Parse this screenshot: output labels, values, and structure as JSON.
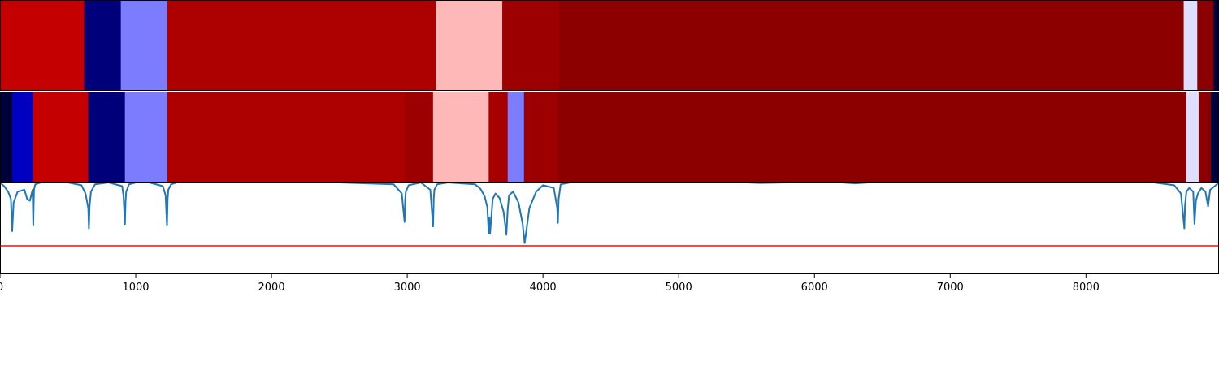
{
  "chart_data": {
    "type": "heatmap",
    "title": "",
    "xlabel": "",
    "ylabel": "",
    "xlim": [
      0,
      8980
    ],
    "x_ticks": [
      0,
      1000,
      2000,
      3000,
      4000,
      5000,
      6000,
      7000,
      8000
    ],
    "x_tick_labels": [
      "0",
      "1000",
      "2000",
      "3000",
      "4000",
      "5000",
      "6000",
      "7000",
      "8000"
    ],
    "grid": false,
    "legend": "none",
    "panels": [
      {
        "kind": "segment_strip",
        "segments": [
          {
            "start": 0,
            "end": 620,
            "color": "#c40000"
          },
          {
            "start": 620,
            "end": 890,
            "color": "#00007a"
          },
          {
            "start": 890,
            "end": 1230,
            "color": "#7c7cff"
          },
          {
            "start": 1230,
            "end": 3210,
            "color": "#ad0000"
          },
          {
            "start": 3210,
            "end": 3700,
            "color": "#ffb8b8"
          },
          {
            "start": 3700,
            "end": 4120,
            "color": "#9c0000"
          },
          {
            "start": 4120,
            "end": 8720,
            "color": "#8c0000"
          },
          {
            "start": 8720,
            "end": 8820,
            "color": "#dedeff"
          },
          {
            "start": 8820,
            "end": 8940,
            "color": "#8a0000"
          },
          {
            "start": 8940,
            "end": 8980,
            "color": "#00003a"
          }
        ]
      },
      {
        "kind": "segment_strip",
        "segments": [
          {
            "start": 0,
            "end": 90,
            "color": "#00003a"
          },
          {
            "start": 90,
            "end": 240,
            "color": "#0000c0"
          },
          {
            "start": 240,
            "end": 650,
            "color": "#c40000"
          },
          {
            "start": 650,
            "end": 920,
            "color": "#00007a"
          },
          {
            "start": 920,
            "end": 1230,
            "color": "#7c7cff"
          },
          {
            "start": 1230,
            "end": 2980,
            "color": "#ad0000"
          },
          {
            "start": 2980,
            "end": 3190,
            "color": "#9c0000"
          },
          {
            "start": 3190,
            "end": 3600,
            "color": "#ffb8b8"
          },
          {
            "start": 3600,
            "end": 3740,
            "color": "#a80000"
          },
          {
            "start": 3740,
            "end": 3860,
            "color": "#7c7cff"
          },
          {
            "start": 3860,
            "end": 4110,
            "color": "#9c0000"
          },
          {
            "start": 4110,
            "end": 8740,
            "color": "#8c0000"
          },
          {
            "start": 8740,
            "end": 8830,
            "color": "#dedeff"
          },
          {
            "start": 8830,
            "end": 8920,
            "color": "#8a0000"
          },
          {
            "start": 8920,
            "end": 8980,
            "color": "#00003a"
          }
        ]
      },
      {
        "kind": "line",
        "line_color": "#1f77b4",
        "threshold": 0.31,
        "threshold_color": "#e8130f",
        "ylim": [
          0,
          1
        ],
        "series": {
          "x": [
            0,
            30,
            60,
            80,
            90,
            100,
            130,
            180,
            200,
            220,
            240,
            245,
            250,
            260,
            300,
            400,
            500,
            600,
            630,
            650,
            655,
            660,
            670,
            700,
            800,
            900,
            910,
            920,
            925,
            930,
            950,
            1000,
            1100,
            1200,
            1220,
            1230,
            1235,
            1240,
            1260,
            1300,
            1500,
            2000,
            2500,
            2900,
            2960,
            2980,
            2985,
            2990,
            3010,
            3100,
            3170,
            3190,
            3195,
            3200,
            3220,
            3300,
            3500,
            3540,
            3570,
            3590,
            3600,
            3605,
            3610,
            3630,
            3650,
            3680,
            3710,
            3730,
            3740,
            3750,
            3780,
            3820,
            3850,
            3865,
            3880,
            3900,
            3950,
            4000,
            4080,
            4105,
            4110,
            4115,
            4130,
            4200,
            4500,
            5000,
            5500,
            5600,
            5800,
            6000,
            6200,
            6300,
            6400,
            6600,
            7000,
            7500,
            8000,
            8500,
            8650,
            8700,
            8725,
            8730,
            8740,
            8760,
            8790,
            8800,
            8810,
            8825,
            8850,
            8880,
            8900,
            8915,
            8940,
            8980
          ],
          "y": [
            1,
            0.96,
            0.9,
            0.82,
            0.47,
            0.78,
            0.9,
            0.92,
            0.82,
            0.8,
            0.92,
            0.53,
            0.92,
            0.98,
            1,
            1,
            1,
            0.97,
            0.88,
            0.72,
            0.5,
            0.74,
            0.9,
            0.98,
            1,
            0.96,
            0.85,
            0.54,
            0.8,
            0.9,
            0.98,
            1,
            1,
            0.96,
            0.86,
            0.53,
            0.82,
            0.92,
            0.98,
            1,
            1,
            1,
            1,
            0.98,
            0.88,
            0.57,
            0.82,
            0.9,
            0.97,
            1,
            0.92,
            0.52,
            0.82,
            0.92,
            0.98,
            1,
            0.98,
            0.93,
            0.85,
            0.73,
            0.45,
            0.62,
            0.44,
            0.82,
            0.88,
            0.83,
            0.68,
            0.43,
            0.7,
            0.86,
            0.9,
            0.78,
            0.55,
            0.34,
            0.5,
            0.72,
            0.9,
            0.97,
            0.94,
            0.72,
            0.56,
            0.82,
            0.98,
            1,
            1,
            1,
            1,
            0.995,
            1,
            1,
            1,
            0.99,
            1,
            1,
            1,
            1,
            1,
            1,
            0.97,
            0.88,
            0.5,
            0.75,
            0.9,
            0.94,
            0.9,
            0.55,
            0.8,
            0.88,
            0.94,
            0.9,
            0.74,
            0.92,
            0.95,
            1
          ]
        }
      }
    ]
  }
}
